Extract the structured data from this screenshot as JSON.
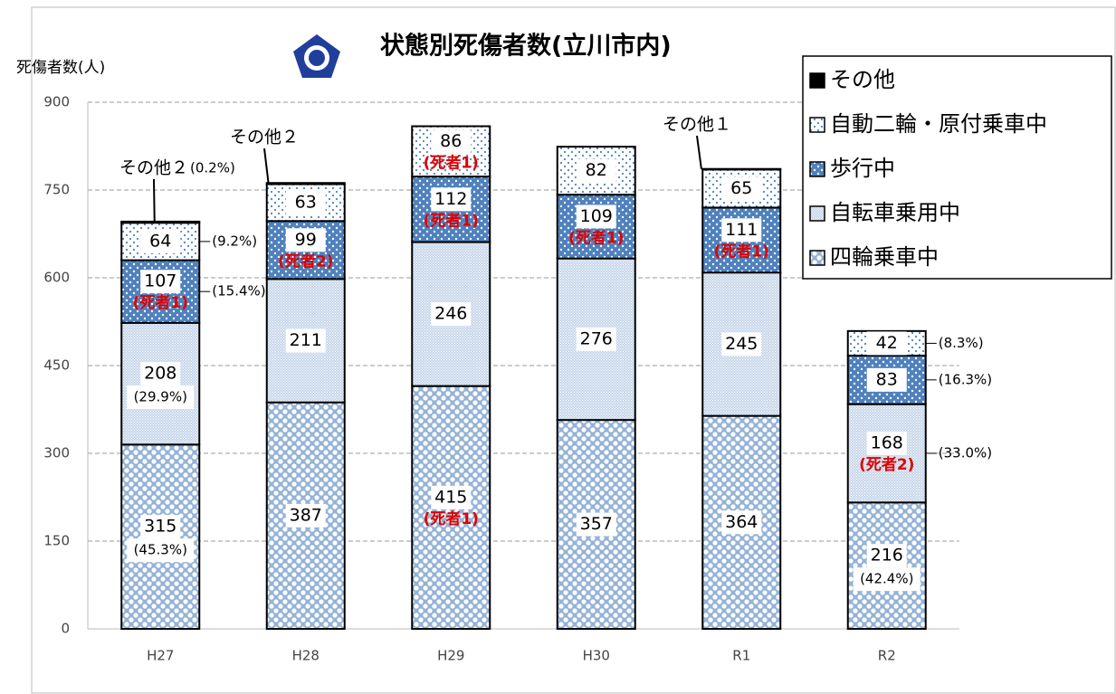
{
  "chart_data": {
    "type": "stacked_bar",
    "title": "状態別死傷者数(立川市内)",
    "y_axis_label": "死傷者数(人)",
    "categories": [
      "H27",
      "H28",
      "H29",
      "H30",
      "R1",
      "R2"
    ],
    "ylim": [
      0,
      900
    ],
    "yticks": [
      0,
      150,
      300,
      450,
      600,
      750,
      900
    ],
    "grid": true,
    "legend_position": "upper right",
    "series": [
      {
        "name": "四輪乗車中",
        "color": "#95b3d7",
        "values": [
          315,
          387,
          415,
          357,
          364,
          216
        ],
        "fatality_labels": [
          null,
          null,
          "(死者1)",
          null,
          null,
          null
        ],
        "share_labels": [
          "(45.3%)",
          null,
          null,
          null,
          null,
          "(42.4%)"
        ]
      },
      {
        "name": "自転車乗用中",
        "color": "#b8cce4",
        "values": [
          208,
          211,
          246,
          276,
          245,
          168
        ],
        "fatality_labels": [
          null,
          null,
          null,
          null,
          null,
          "(死者2)"
        ],
        "share_labels": [
          "(29.9%)",
          null,
          null,
          null,
          null,
          "(33.0%)"
        ]
      },
      {
        "name": "歩行中",
        "color": "#4f81bd",
        "values": [
          107,
          99,
          112,
          109,
          111,
          83
        ],
        "fatality_labels": [
          "(死者1)",
          "(死者2)",
          "(死者1)",
          "(死者1)",
          "(死者1)",
          null
        ],
        "share_labels": [
          "(15.4%)",
          null,
          null,
          null,
          null,
          "(16.3%)"
        ]
      },
      {
        "name": "自動二輪・原付乗車中",
        "color": "#ffffff",
        "values": [
          64,
          63,
          86,
          82,
          65,
          42
        ],
        "fatality_labels": [
          null,
          null,
          "(死者1)",
          null,
          null,
          null
        ],
        "share_labels": [
          "(9.2%)",
          null,
          null,
          null,
          null,
          "(8.3%)"
        ]
      },
      {
        "name": "その他",
        "color": "#000000",
        "values": [
          2,
          2,
          null,
          null,
          1,
          null
        ],
        "value_labels": [
          "その他２",
          "その他２",
          null,
          null,
          "その他１",
          null
        ],
        "share_labels": [
          "(0.2%)",
          null,
          null,
          null,
          null,
          null
        ]
      }
    ]
  }
}
